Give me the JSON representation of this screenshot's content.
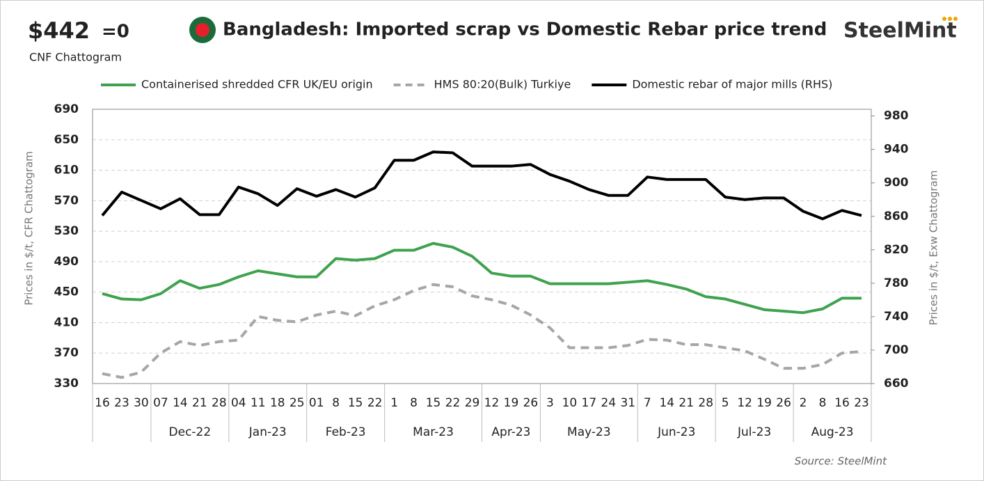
{
  "header": {
    "price": "$442",
    "change": "=0",
    "price_basis": "CNF Chattogram",
    "logo": "SteelMint"
  },
  "chart_data": {
    "type": "line",
    "title": "Bangladesh: Imported scrap vs Domestic Rebar price trend",
    "source": "Source: SteelMint",
    "ylabel": "Prices in $/t, CFR Chattogram",
    "y2label": "Prices in $/t, Exw Chattogram",
    "categories": [
      "16",
      "23",
      "30",
      "07",
      "14",
      "21",
      "28",
      "04",
      "11",
      "18",
      "25",
      "01",
      "8",
      "15",
      "22",
      "1",
      "8",
      "15",
      "22",
      "29",
      "12",
      "19",
      "26",
      "3",
      "10",
      "17",
      "24",
      "31",
      "7",
      "14",
      "21",
      "28",
      "5",
      "12",
      "19",
      "26",
      "2",
      "8",
      "16",
      "23"
    ],
    "x_groups": [
      null,
      null,
      null,
      "Dec-22",
      "Dec-22",
      "Dec-22",
      "Dec-22",
      "Jan-23",
      "Jan-23",
      "Jan-23",
      "Jan-23",
      "Feb-23",
      "Feb-23",
      "Feb-23",
      "Feb-23",
      "Mar-23",
      "Mar-23",
      "Mar-23",
      "Mar-23",
      "Mar-23",
      "Apr-23",
      "Apr-23",
      "Apr-23",
      "May-23",
      "May-23",
      "May-23",
      "May-23",
      "May-23",
      "Jun-23",
      "Jun-23",
      "Jun-23",
      "Jun-23",
      "Jul-23",
      "Jul-23",
      "Jul-23",
      "Jul-23",
      "Aug-23",
      "Aug-23",
      "Aug-23",
      "Aug-23"
    ],
    "ylim": [
      330,
      690
    ],
    "yticks": [
      330,
      370,
      410,
      450,
      490,
      530,
      570,
      610,
      650,
      690
    ],
    "y2lim": [
      660,
      988
    ],
    "y2ticks": [
      660,
      700,
      740,
      780,
      820,
      860,
      900,
      940,
      980
    ],
    "grid": true,
    "series": [
      {
        "name": "Containerised shredded CFR UK/EU origin",
        "color": "#3fa24e",
        "dash": false,
        "values": [
          448,
          441,
          440,
          448,
          465,
          455,
          460,
          470,
          478,
          474,
          470,
          470,
          494,
          492,
          494,
          505,
          505,
          514,
          509,
          497,
          475,
          471,
          471,
          461,
          461,
          461,
          461,
          463,
          465,
          460,
          454,
          444,
          441,
          434,
          427,
          425,
          423,
          428,
          442,
          442
        ]
      },
      {
        "name": "HMS 80:20(Bulk) Turkiye",
        "color": "#a6a6a6",
        "dash": true,
        "values": [
          343,
          338,
          345,
          370,
          385,
          380,
          385,
          387,
          418,
          413,
          411,
          420,
          425,
          419,
          432,
          440,
          452,
          460,
          457,
          445,
          440,
          433,
          420,
          403,
          377,
          377,
          377,
          380,
          388,
          387,
          381,
          381,
          377,
          373,
          362,
          350,
          350,
          355,
          370,
          372
        ]
      },
      {
        "name": "Domestic rebar of major mills (RHS)",
        "color": "#000000",
        "dash": false,
        "axis": "y2",
        "values": [
          861,
          889,
          879,
          869,
          881,
          862,
          862,
          895,
          887,
          873,
          893,
          884,
          892,
          883,
          894,
          927,
          927,
          937,
          936,
          920,
          920,
          920,
          922,
          910,
          902,
          892,
          885,
          885,
          907,
          904,
          904,
          904,
          883,
          880,
          882,
          882,
          866,
          857,
          867,
          861
        ]
      }
    ]
  }
}
